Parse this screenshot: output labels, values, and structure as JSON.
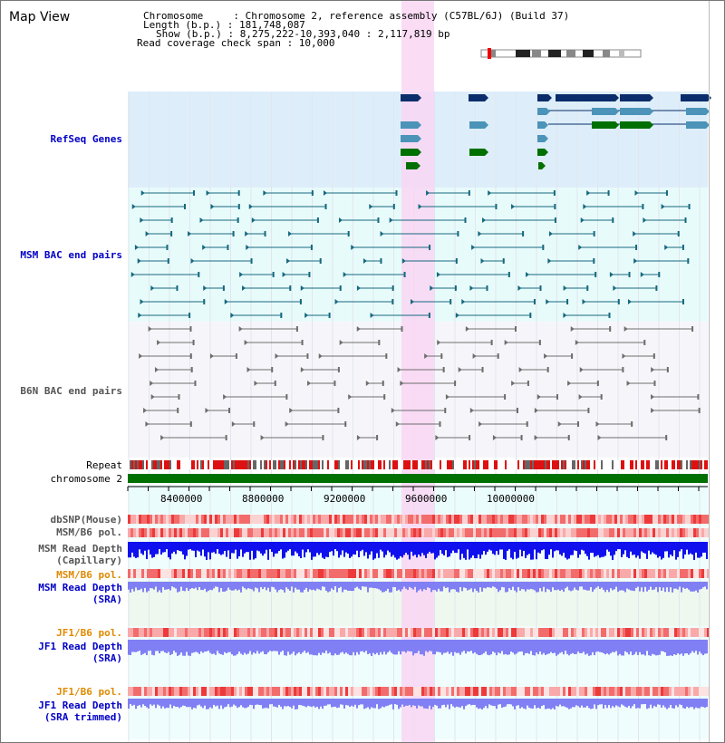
{
  "view_title": "Map View",
  "info": {
    "chromosome_line": "Chromosome     : Chromosome 2, reference assembly (C57BL/6J) (Build 37)",
    "length_line": "Length (b.p.) : 181,748,087",
    "show_line": "Show (b.p.) : 8,275,222-10,393,040 : 2,117,819 bp",
    "coverage_line": "Read coverage check span : 10,000"
  },
  "tracks": {
    "refseq": "RefSeq Genes",
    "msm_bac": "MSM BAC end pairs",
    "b6n_bac": "B6N BAC end pairs",
    "repeat": "Repeat",
    "chromosome": "chromosome 2",
    "dbsnp": "dbSNP(Mouse)",
    "msm_b6_pol": "MSM/B6 pol.",
    "msm_depth_cap_1": "MSM Read Depth",
    "msm_depth_cap_2": "(Capillary)",
    "msm_b6_pol2": "MSM/B6 pol.",
    "msm_depth_sra_1": "MSM Read Depth",
    "msm_depth_sra_2": "(SRA)",
    "jf1_pol": "JF1/B6 pol.",
    "jf1_depth_1": "JF1 Read Depth",
    "jf1_depth_2": "(SRA)",
    "jf1_pol2": "JF1/B6 pol.",
    "jf1_trim_1": "JF1 Read Depth",
    "jf1_trim_2": "(SRA trimmed)"
  },
  "axis_ticks": [
    "8400000",
    "8800000",
    "9200000",
    "9600000",
    "10000000"
  ],
  "colors": {
    "highlight": "#f9d6f3",
    "refseq_bg": "#ddeefa",
    "bac_bg": "#e8fbfb",
    "gene_dark": "#0b2d6b",
    "gene_mid": "#4b93b8",
    "gene_green": "#007000",
    "msm_pair": "#16697f",
    "b6n_pair": "#6d6d6d",
    "chromosome_bar": "#007000",
    "depth_blue": "#1010ee",
    "depth_light": "#8080f4"
  }
}
